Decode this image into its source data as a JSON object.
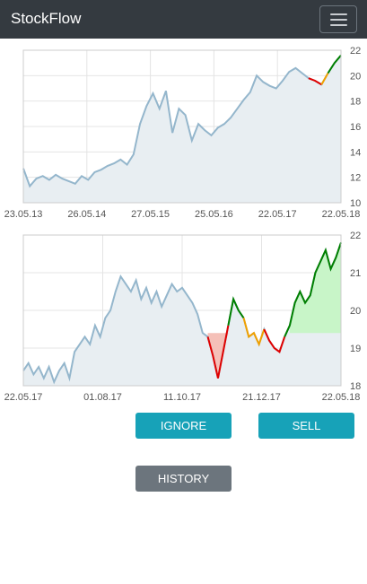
{
  "navbar": {
    "brand": "StockFlow",
    "menu_icon": "hamburger-icon"
  },
  "colors": {
    "navbar_bg": "#343a40",
    "price_line": "#94b6cc",
    "price_area": "#e8eef2",
    "gain": "#008000",
    "loss": "#e00000",
    "neutral": "#f0a000",
    "gain_fill": "#c8f5c8",
    "loss_fill": "#f5c0b8",
    "button_info": "#17a2b8",
    "button_secondary": "#6c757d"
  },
  "chart_data": [
    {
      "type": "area",
      "title": "",
      "x_ticks": [
        "23.05.13",
        "26.05.14",
        "27.05.15",
        "25.05.16",
        "22.05.17",
        "22.05.18"
      ],
      "y_ticks": [
        "10",
        "12",
        "14",
        "16",
        "18",
        "20",
        "22"
      ],
      "ylim": [
        10,
        22
      ],
      "grid": true,
      "series": [
        {
          "values": [
            12.7,
            11.3,
            11.9,
            12.1,
            11.8,
            12.2,
            11.9,
            11.7,
            11.5,
            12.1,
            11.8,
            12.4,
            12.6,
            12.9,
            13.1,
            13.4,
            13.0,
            13.8,
            16.2,
            17.6,
            18.6,
            17.4,
            18.8,
            15.5,
            17.4,
            16.9,
            14.9,
            16.2,
            15.7,
            15.3,
            15.9,
            16.2,
            16.7,
            17.4,
            18.1,
            18.7,
            20.0,
            19.5,
            19.2,
            19.0,
            19.6,
            20.3,
            20.6,
            20.2,
            19.8,
            19.6,
            19.3,
            20.2,
            21.0,
            21.6
          ]
        }
      ]
    },
    {
      "type": "line",
      "title": "",
      "x_ticks": [
        "22.05.17",
        "01.08.17",
        "11.10.17",
        "21.12.17",
        "22.05.18"
      ],
      "y_ticks": [
        "18",
        "19",
        "20",
        "21",
        "22"
      ],
      "ylim": [
        18,
        22
      ],
      "grid": true,
      "series": [
        {
          "values": [
            18.4,
            18.6,
            18.3,
            18.5,
            18.2,
            18.5,
            18.1,
            18.4,
            18.6,
            18.2,
            18.9,
            19.1,
            19.3,
            19.1,
            19.6,
            19.3,
            19.8,
            20.0,
            20.5,
            20.9,
            20.7,
            20.5,
            20.8,
            20.3,
            20.6,
            20.2,
            20.5,
            20.1,
            20.4,
            20.7,
            20.5,
            20.6,
            20.4,
            20.2,
            19.9,
            19.4,
            19.3,
            18.8,
            18.2,
            18.9,
            19.6,
            20.3,
            20.0,
            19.8,
            19.3,
            19.4,
            19.1,
            19.5,
            19.2,
            19.0,
            18.9,
            19.3,
            19.6,
            20.2,
            20.5,
            20.2,
            20.4,
            21.0,
            21.3,
            21.6,
            21.1,
            21.4,
            21.8
          ]
        }
      ]
    }
  ],
  "buttons": {
    "ignore": "IGNORE",
    "sell": "SELL",
    "history": "HISTORY"
  }
}
